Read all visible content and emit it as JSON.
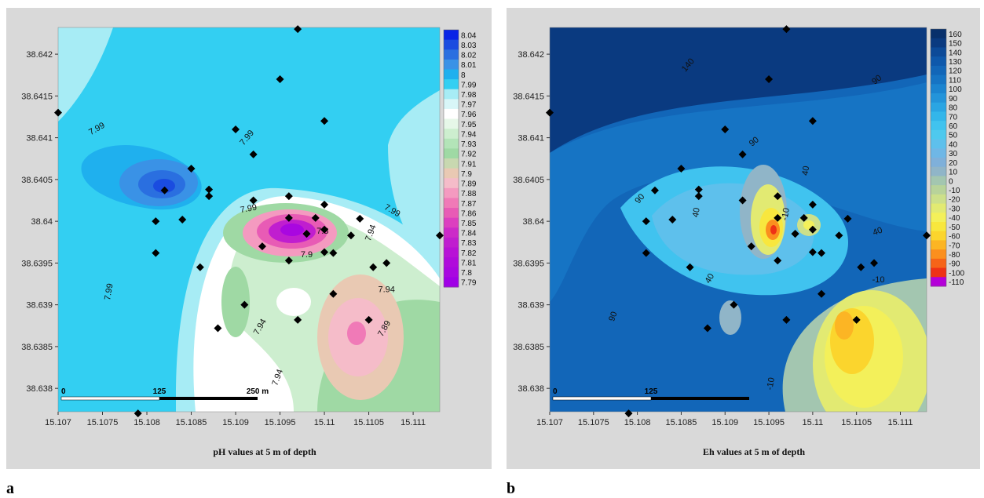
{
  "panels": [
    {
      "letter": "a",
      "chart_data": {
        "type": "heatmap",
        "title": "pH values at 5 m of depth",
        "xlabel": "",
        "ylabel": "",
        "xlim": [
          15.107,
          15.1113
        ],
        "ylim": [
          38.63772,
          38.64232
        ],
        "x_ticks": [
          "15.107",
          "15.1075",
          "15.108",
          "15.1085",
          "15.109",
          "15.1095",
          "15.11",
          "15.1105",
          "15.111"
        ],
        "y_ticks": [
          "38.638",
          "38.6385",
          "38.639",
          "38.6395",
          "38.64",
          "38.6405",
          "38.641",
          "38.6415",
          "38.642"
        ],
        "colorbar_labels": [
          "8.04",
          "8.03",
          "8.02",
          "8.01",
          "8",
          "7.99",
          "7.98",
          "7.97",
          "7.96",
          "7.95",
          "7.94",
          "7.93",
          "7.92",
          "7.91",
          "7.9",
          "7.89",
          "7.88",
          "7.87",
          "7.86",
          "7.85",
          "7.84",
          "7.83",
          "7.82",
          "7.81",
          "7.8",
          "7.79"
        ],
        "colorbar_colors": [
          "#0a24e6",
          "#1a4ce0",
          "#2a6fe0",
          "#3a92e6",
          "#1fb0ee",
          "#33cff2",
          "#a7ecf5",
          "#d8f6f8",
          "#ffffff",
          "#e6f7e8",
          "#cdeecf",
          "#b3e4b8",
          "#9fd9a4",
          "#c8d8b0",
          "#e9c9b3",
          "#f5bcc9",
          "#f49ac0",
          "#f07ab7",
          "#e85bb5",
          "#dc3fbf",
          "#cc2ac8",
          "#c01ecf",
          "#b812d6",
          "#b00bdb",
          "#a907e0",
          "#a000e6"
        ],
        "contour_labels": [
          {
            "text": "7.99",
            "x": 15.10745,
            "y": 38.64108,
            "rot": -30
          },
          {
            "text": "7.99",
            "x": 15.10915,
            "y": 38.64098,
            "rot": -50
          },
          {
            "text": "7.99",
            "x": 15.10915,
            "y": 38.64012,
            "rot": -10
          },
          {
            "text": "7.99",
            "x": 15.11075,
            "y": 38.6401,
            "rot": 30
          },
          {
            "text": "7.99",
            "x": 15.1076,
            "y": 38.63915,
            "rot": -80
          },
          {
            "text": "7.94",
            "x": 15.11055,
            "y": 38.63985,
            "rot": -70
          },
          {
            "text": "7.94",
            "x": 15.1093,
            "y": 38.63872,
            "rot": -60
          },
          {
            "text": "7.94",
            "x": 15.1107,
            "y": 38.63915,
            "rot": 0
          },
          {
            "text": "7.94",
            "x": 15.1095,
            "y": 38.63812,
            "rot": -70
          },
          {
            "text": "7.89",
            "x": 15.1107,
            "y": 38.6387,
            "rot": -60
          },
          {
            "text": "7.8",
            "x": 15.10998,
            "y": 38.63985,
            "rot": 0
          },
          {
            "text": "7.9",
            "x": 15.1098,
            "y": 38.63957,
            "rot": 0
          }
        ],
        "sample_points": [
          [
            15.1097,
            38.6423
          ],
          [
            15.107,
            38.6413
          ],
          [
            15.1095,
            38.6417
          ],
          [
            15.11,
            38.6412
          ],
          [
            15.109,
            38.6411
          ],
          [
            15.1092,
            38.6408
          ],
          [
            15.1085,
            38.64063
          ],
          [
            15.1082,
            38.64037
          ],
          [
            15.1087,
            38.64038
          ],
          [
            15.1087,
            38.6403
          ],
          [
            15.1092,
            38.64025
          ],
          [
            15.1096,
            38.6403
          ],
          [
            15.1081,
            38.64
          ],
          [
            15.1084,
            38.64002
          ],
          [
            15.1096,
            38.64004
          ],
          [
            15.1098,
            38.63985
          ],
          [
            15.1098,
            38.63985
          ],
          [
            15.1099,
            38.64004
          ],
          [
            15.11,
            38.6399
          ],
          [
            15.11,
            38.6402
          ],
          [
            15.1103,
            38.63983
          ],
          [
            15.1104,
            38.64003
          ],
          [
            15.1093,
            38.6397
          ],
          [
            15.1096,
            38.63953
          ],
          [
            15.11,
            38.63963
          ],
          [
            15.1101,
            38.63962
          ],
          [
            15.1081,
            38.63962
          ],
          [
            15.1086,
            38.63945
          ],
          [
            15.11055,
            38.63945
          ],
          [
            15.1107,
            38.6395
          ],
          [
            15.1113,
            38.63983
          ],
          [
            15.1091,
            38.639
          ],
          [
            15.1101,
            38.63913
          ],
          [
            15.1088,
            38.63872
          ],
          [
            15.1097,
            38.63882
          ],
          [
            15.1105,
            38.63882
          ],
          [
            15.1079,
            38.6377
          ]
        ],
        "scale_bar": {
          "labels": [
            "0",
            "125",
            "250 m"
          ]
        }
      }
    },
    {
      "letter": "b",
      "chart_data": {
        "type": "heatmap",
        "title": "Eh values at 5 m of depth",
        "xlabel": "",
        "ylabel": "",
        "xlim": [
          15.107,
          15.1113
        ],
        "ylim": [
          38.63772,
          38.64232
        ],
        "x_ticks": [
          "15.107",
          "15.1075",
          "15.108",
          "15.1085",
          "15.109",
          "15.1095",
          "15.11",
          "15.1105",
          "15.111"
        ],
        "y_ticks": [
          "38.638",
          "38.6385",
          "38.639",
          "38.6395",
          "38.64",
          "38.6405",
          "38.641",
          "38.6415",
          "38.642"
        ],
        "colorbar_labels": [
          "160",
          "150",
          "140",
          "130",
          "120",
          "110",
          "100",
          "90",
          "80",
          "70",
          "60",
          "50",
          "40",
          "30",
          "20",
          "10",
          "0",
          "-10",
          "-20",
          "-30",
          "-40",
          "-50",
          "-60",
          "-70",
          "-80",
          "-90",
          "-100",
          "-110"
        ],
        "colorbar_colors": [
          "#08306b",
          "#0a3a80",
          "#0c4a98",
          "#0e58ab",
          "#1266b8",
          "#1674c4",
          "#1b84d0",
          "#2394da",
          "#2aa5e3",
          "#33b6ea",
          "#40c3ef",
          "#4ec9ee",
          "#5ec0ec",
          "#6fb7e6",
          "#7fb0da",
          "#90b5c8",
          "#a3c6b0",
          "#b8d39a",
          "#cde08a",
          "#e2ea72",
          "#f3f05a",
          "#f8e73e",
          "#fbd52d",
          "#fcb524",
          "#fb8f1e",
          "#f66418",
          "#ee3216",
          "#b400d8"
        ],
        "contour_labels": [
          {
            "text": "140",
            "x": 15.1086,
            "y": 38.64185,
            "rot": -50
          },
          {
            "text": "90",
            "x": 15.11075,
            "y": 38.64167,
            "rot": -40
          },
          {
            "text": "90",
            "x": 15.10935,
            "y": 38.64093,
            "rot": -40
          },
          {
            "text": "90",
            "x": 15.10805,
            "y": 38.64025,
            "rot": -50
          },
          {
            "text": "90",
            "x": 15.10775,
            "y": 38.63885,
            "rot": -70
          },
          {
            "text": "40",
            "x": 15.10995,
            "y": 38.6406,
            "rot": -80
          },
          {
            "text": "40",
            "x": 15.1087,
            "y": 38.6401,
            "rot": -80
          },
          {
            "text": "40",
            "x": 15.11075,
            "y": 38.63985,
            "rot": -20
          },
          {
            "text": "40",
            "x": 15.10885,
            "y": 38.6393,
            "rot": -60
          },
          {
            "text": "-10",
            "x": 15.10972,
            "y": 38.64008,
            "rot": -80
          },
          {
            "text": "-10",
            "x": 15.11075,
            "y": 38.63927,
            "rot": 0
          },
          {
            "text": "-10",
            "x": 15.10955,
            "y": 38.63805,
            "rot": -80
          }
        ],
        "sample_points": [
          [
            15.1097,
            38.6423
          ],
          [
            15.107,
            38.6413
          ],
          [
            15.1095,
            38.6417
          ],
          [
            15.11,
            38.6412
          ],
          [
            15.109,
            38.6411
          ],
          [
            15.1092,
            38.6408
          ],
          [
            15.1085,
            38.64063
          ],
          [
            15.1082,
            38.64037
          ],
          [
            15.1087,
            38.64038
          ],
          [
            15.1087,
            38.6403
          ],
          [
            15.1092,
            38.64025
          ],
          [
            15.1096,
            38.6403
          ],
          [
            15.1081,
            38.64
          ],
          [
            15.1084,
            38.64002
          ],
          [
            15.1096,
            38.64004
          ],
          [
            15.1098,
            38.63985
          ],
          [
            15.1098,
            38.63985
          ],
          [
            15.1099,
            38.64004
          ],
          [
            15.11,
            38.6399
          ],
          [
            15.11,
            38.6402
          ],
          [
            15.1103,
            38.63983
          ],
          [
            15.1104,
            38.64003
          ],
          [
            15.1093,
            38.6397
          ],
          [
            15.1096,
            38.63953
          ],
          [
            15.11,
            38.63963
          ],
          [
            15.1101,
            38.63962
          ],
          [
            15.1081,
            38.63962
          ],
          [
            15.1086,
            38.63945
          ],
          [
            15.11055,
            38.63945
          ],
          [
            15.1107,
            38.6395
          ],
          [
            15.1113,
            38.63983
          ],
          [
            15.1091,
            38.639
          ],
          [
            15.1101,
            38.63913
          ],
          [
            15.1088,
            38.63872
          ],
          [
            15.1097,
            38.63882
          ],
          [
            15.1105,
            38.63882
          ],
          [
            15.1079,
            38.6377
          ]
        ],
        "scale_bar": {
          "labels": [
            "0",
            "125"
          ]
        }
      }
    }
  ]
}
